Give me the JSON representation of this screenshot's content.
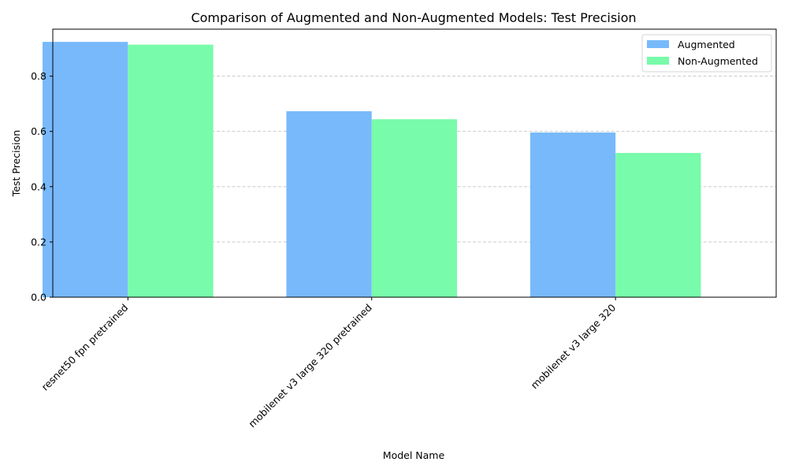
{
  "chart_data": {
    "type": "bar",
    "title": "Comparison of Augmented and Non-Augmented Models: Test Precision",
    "xlabel": "Model Name",
    "ylabel": "Test Precision",
    "categories": [
      "resnet50 fpn pretrained",
      "mobilenet v3 large 320 pretrained",
      "mobilenet v3 large 320"
    ],
    "series": [
      {
        "name": "Augmented",
        "values": [
          0.924,
          0.673,
          0.596
        ],
        "color": "#78b9fb"
      },
      {
        "name": "Non-Augmented",
        "values": [
          0.914,
          0.644,
          0.522
        ],
        "color": "#78fbaa"
      }
    ],
    "ylim": [
      0,
      0.97
    ],
    "yticks": [
      0.0,
      0.2,
      0.4,
      0.6,
      0.8
    ],
    "ytick_labels": [
      "0.0",
      "0.2",
      "0.4",
      "0.6",
      "0.8"
    ],
    "grid": "y-dashed",
    "legend_position": "top-right"
  }
}
